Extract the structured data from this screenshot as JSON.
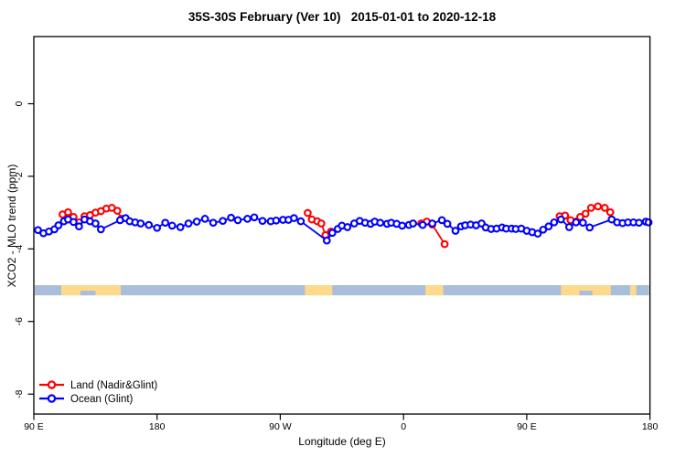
{
  "chart_data": {
    "type": "line",
    "title": "35S-30S February (Ver 10)   2015-01-01 to 2020-12-18",
    "xlabel": "Longitude (deg E)",
    "ylabel": "XCO2 - MLO trend (ppm)",
    "xlim": [
      90,
      540
    ],
    "ylim": [
      -8.55,
      1.85
    ],
    "grid": "off",
    "legend_position": "bottom-left",
    "x_ticks": [
      {
        "value": 90,
        "label": "90 E"
      },
      {
        "value": 180,
        "label": "180"
      },
      {
        "value": 270,
        "label": "90 W"
      },
      {
        "value": 360,
        "label": "0"
      },
      {
        "value": 450,
        "label": "90 E"
      },
      {
        "value": 540,
        "label": "180"
      }
    ],
    "y_ticks": [
      {
        "value": 0,
        "label": "0"
      },
      {
        "value": -2,
        "label": "-2"
      },
      {
        "value": -4,
        "label": "-4"
      },
      {
        "value": -6,
        "label": "-6"
      },
      {
        "value": -8,
        "label": "-8"
      }
    ],
    "series": [
      {
        "name": "Land (Nadir&Glint)",
        "color": "#ff0000",
        "marker": "open-circle",
        "segments": [
          [
            [
              111,
              -3.05
            ],
            [
              115,
              -2.99
            ],
            [
              119,
              -3.12
            ],
            [
              123,
              -3.27
            ],
            [
              127,
              -3.1
            ],
            [
              131,
              -3.07
            ],
            [
              135,
              -3.0
            ],
            [
              139,
              -2.96
            ],
            [
              143,
              -2.89
            ],
            [
              147,
              -2.87
            ],
            [
              151,
              -2.95
            ],
            [
              154,
              -3.17
            ]
          ],
          [
            [
              290,
              -3.01
            ],
            [
              293,
              -3.19
            ],
            [
              297,
              -3.24
            ],
            [
              300,
              -3.3
            ],
            [
              303,
              -3.62
            ],
            [
              307,
              -3.52
            ]
          ],
          [
            [
              373,
              -3.3
            ],
            [
              377,
              -3.25
            ],
            [
              381,
              -3.33
            ],
            [
              390,
              -3.87
            ]
          ],
          [
            [
              474,
              -3.1
            ],
            [
              478,
              -3.08
            ],
            [
              482,
              -3.21
            ],
            [
              489,
              -3.12
            ],
            [
              493,
              -3.03
            ],
            [
              497,
              -2.87
            ],
            [
              502,
              -2.83
            ],
            [
              507,
              -2.87
            ],
            [
              511,
              -2.99
            ]
          ]
        ]
      },
      {
        "name": "Ocean (Glint)",
        "color": "#0000ff",
        "marker": "open-circle",
        "segments": [
          [
            [
              93,
              -3.48
            ],
            [
              97,
              -3.57
            ],
            [
              101,
              -3.52
            ],
            [
              105,
              -3.46
            ],
            [
              108,
              -3.35
            ],
            [
              112,
              -3.24
            ],
            [
              115,
              -3.19
            ],
            [
              119,
              -3.26
            ],
            [
              123,
              -3.38
            ],
            [
              127,
              -3.19
            ],
            [
              131,
              -3.24
            ],
            [
              135,
              -3.3
            ],
            [
              139,
              -3.46
            ],
            [
              153,
              -3.21
            ],
            [
              157,
              -3.15
            ],
            [
              160,
              -3.24
            ],
            [
              164,
              -3.27
            ],
            [
              168,
              -3.3
            ],
            [
              174,
              -3.34
            ],
            [
              180,
              -3.42
            ],
            [
              186,
              -3.28
            ],
            [
              191,
              -3.36
            ],
            [
              197,
              -3.4
            ],
            [
              203,
              -3.3
            ],
            [
              209,
              -3.25
            ],
            [
              215,
              -3.17
            ],
            [
              221,
              -3.28
            ],
            [
              228,
              -3.23
            ],
            [
              234,
              -3.14
            ],
            [
              239,
              -3.21
            ],
            [
              246,
              -3.17
            ],
            [
              251,
              -3.13
            ],
            [
              257,
              -3.23
            ],
            [
              263,
              -3.24
            ],
            [
              267,
              -3.22
            ],
            [
              272,
              -3.2
            ],
            [
              276,
              -3.2
            ],
            [
              280,
              -3.15
            ],
            [
              285,
              -3.24
            ],
            [
              304,
              -3.77
            ],
            [
              308,
              -3.56
            ],
            [
              312,
              -3.45
            ],
            [
              315,
              -3.36
            ],
            [
              319,
              -3.4
            ],
            [
              324,
              -3.3
            ],
            [
              328,
              -3.23
            ],
            [
              332,
              -3.28
            ],
            [
              336,
              -3.31
            ],
            [
              339,
              -3.25
            ],
            [
              343,
              -3.28
            ],
            [
              348,
              -3.31
            ],
            [
              351,
              -3.28
            ],
            [
              355,
              -3.31
            ],
            [
              359,
              -3.36
            ],
            [
              364,
              -3.34
            ],
            [
              367,
              -3.3
            ],
            [
              374,
              -3.34
            ],
            [
              381,
              -3.3
            ],
            [
              388,
              -3.21
            ],
            [
              392,
              -3.31
            ],
            [
              398,
              -3.5
            ],
            [
              402,
              -3.38
            ],
            [
              405,
              -3.35
            ],
            [
              409,
              -3.33
            ],
            [
              413,
              -3.35
            ],
            [
              417,
              -3.3
            ],
            [
              420,
              -3.41
            ],
            [
              424,
              -3.45
            ],
            [
              428,
              -3.44
            ],
            [
              432,
              -3.41
            ],
            [
              435,
              -3.44
            ],
            [
              439,
              -3.44
            ],
            [
              442,
              -3.45
            ],
            [
              446,
              -3.44
            ],
            [
              450,
              -3.5
            ],
            [
              454,
              -3.54
            ],
            [
              458,
              -3.58
            ],
            [
              462,
              -3.47
            ],
            [
              466,
              -3.38
            ],
            [
              470,
              -3.27
            ],
            [
              475,
              -3.19
            ],
            [
              481,
              -3.4
            ],
            [
              486,
              -3.27
            ],
            [
              491,
              -3.28
            ],
            [
              496,
              -3.41
            ],
            [
              512,
              -3.19
            ],
            [
              516,
              -3.27
            ],
            [
              520,
              -3.29
            ],
            [
              524,
              -3.27
            ],
            [
              528,
              -3.27
            ],
            [
              532,
              -3.28
            ],
            [
              537,
              -3.25
            ],
            [
              539,
              -3.27
            ]
          ]
        ]
      }
    ],
    "surface_band": {
      "value_top": -5.0,
      "value_bottom": -5.28,
      "ocean_color": "#a9bedb",
      "land_color": "#fdd98c",
      "land_segments_lon": [
        [
          110,
          153.5
        ],
        [
          288,
          308
        ],
        [
          376,
          389
        ],
        [
          475,
          511.5
        ],
        [
          525.5,
          530
        ]
      ],
      "ocean_notches_lon": [
        [
          124,
          135
        ],
        [
          488.5,
          498
        ]
      ]
    }
  }
}
